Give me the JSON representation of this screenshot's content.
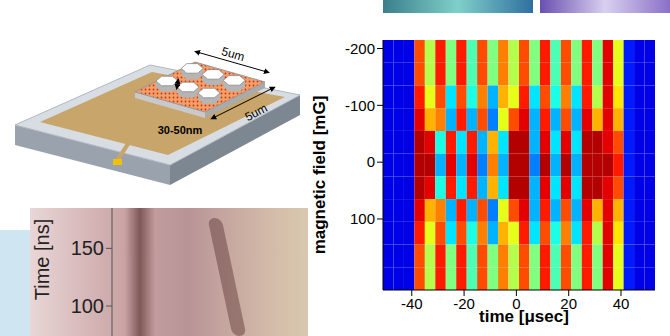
{
  "dimension_labels": {
    "top": "5um",
    "side": "5um",
    "gap": "30-50nm"
  },
  "chart_data": [
    {
      "type": "heatmap",
      "xlabel": "time [μsec]",
      "ylabel": "magnetic field [mG]",
      "xlim": [
        -51,
        53
      ],
      "ylim": [
        225,
        -215
      ],
      "xticks": [
        -40,
        -20,
        0,
        20,
        40
      ],
      "yticks": [
        -200,
        -100,
        0,
        100
      ],
      "cells": {
        "zlim": [
          0,
          1
        ],
        "x_edges": [
          -51,
          -47,
          -43,
          -39,
          -35,
          -31,
          -27,
          -23,
          -19,
          -15,
          -11,
          -7,
          -3,
          1,
          5,
          9,
          13,
          17,
          21,
          25,
          29,
          33,
          37,
          41,
          45,
          49,
          53
        ],
        "y_edges": [
          -215,
          -175,
          -135,
          -95,
          -55,
          -15,
          25,
          65,
          105,
          145,
          185,
          225
        ],
        "values": [
          [
            0.1,
            0.1,
            0.1,
            0.8,
            0.55,
            0.85,
            0.5,
            0.85,
            0.45,
            0.8,
            0.5,
            0.75,
            0.55,
            0.8,
            0.5,
            0.85,
            0.45,
            0.8,
            0.5,
            0.85,
            0.5,
            0.9,
            0.6,
            0.15,
            0.1,
            0.1
          ],
          [
            0.1,
            0.1,
            0.1,
            0.8,
            0.55,
            0.85,
            0.5,
            0.85,
            0.45,
            0.8,
            0.5,
            0.75,
            0.55,
            0.8,
            0.5,
            0.85,
            0.45,
            0.8,
            0.5,
            0.85,
            0.5,
            0.9,
            0.6,
            0.15,
            0.1,
            0.1
          ],
          [
            0.1,
            0.1,
            0.1,
            0.85,
            0.6,
            0.8,
            0.35,
            0.8,
            0.4,
            0.75,
            0.3,
            0.7,
            0.6,
            0.85,
            0.35,
            0.8,
            0.4,
            0.75,
            0.35,
            0.85,
            0.55,
            0.9,
            0.65,
            0.15,
            0.1,
            0.1
          ],
          [
            0.1,
            0.1,
            0.1,
            0.9,
            0.7,
            0.75,
            0.3,
            0.85,
            0.3,
            0.8,
            0.25,
            0.6,
            0.8,
            0.9,
            0.3,
            0.85,
            0.3,
            0.8,
            0.3,
            0.9,
            0.7,
            0.9,
            0.7,
            0.15,
            0.1,
            0.1
          ],
          [
            0.1,
            0.1,
            0.1,
            0.95,
            0.9,
            0.4,
            0.85,
            0.35,
            0.85,
            0.3,
            0.7,
            0.35,
            0.95,
            0.95,
            0.3,
            0.9,
            0.35,
            0.9,
            0.35,
            0.95,
            0.95,
            0.9,
            0.8,
            0.15,
            0.1,
            0.1
          ],
          [
            0.1,
            0.1,
            0.1,
            0.95,
            0.95,
            0.3,
            0.9,
            0.3,
            0.9,
            0.25,
            0.75,
            0.3,
            0.95,
            0.95,
            0.25,
            0.95,
            0.3,
            0.95,
            0.3,
            0.95,
            0.95,
            0.95,
            0.85,
            0.15,
            0.1,
            0.1
          ],
          [
            0.1,
            0.1,
            0.1,
            0.95,
            0.9,
            0.4,
            0.85,
            0.35,
            0.85,
            0.3,
            0.7,
            0.35,
            0.95,
            0.95,
            0.3,
            0.9,
            0.35,
            0.9,
            0.35,
            0.95,
            0.95,
            0.9,
            0.8,
            0.15,
            0.1,
            0.1
          ],
          [
            0.1,
            0.1,
            0.1,
            0.9,
            0.7,
            0.75,
            0.3,
            0.85,
            0.3,
            0.8,
            0.25,
            0.6,
            0.8,
            0.9,
            0.3,
            0.85,
            0.3,
            0.8,
            0.3,
            0.9,
            0.7,
            0.9,
            0.7,
            0.15,
            0.1,
            0.1
          ],
          [
            0.1,
            0.1,
            0.1,
            0.85,
            0.6,
            0.8,
            0.35,
            0.8,
            0.4,
            0.75,
            0.3,
            0.7,
            0.6,
            0.85,
            0.35,
            0.8,
            0.4,
            0.75,
            0.35,
            0.85,
            0.55,
            0.9,
            0.65,
            0.15,
            0.1,
            0.1
          ],
          [
            0.1,
            0.1,
            0.1,
            0.8,
            0.55,
            0.85,
            0.5,
            0.85,
            0.45,
            0.8,
            0.5,
            0.75,
            0.55,
            0.8,
            0.5,
            0.85,
            0.45,
            0.8,
            0.5,
            0.85,
            0.5,
            0.9,
            0.6,
            0.15,
            0.1,
            0.1
          ],
          [
            0.1,
            0.1,
            0.1,
            0.8,
            0.55,
            0.85,
            0.5,
            0.85,
            0.45,
            0.8,
            0.5,
            0.75,
            0.55,
            0.8,
            0.5,
            0.85,
            0.45,
            0.8,
            0.5,
            0.85,
            0.5,
            0.9,
            0.6,
            0.15,
            0.1,
            0.1
          ]
        ]
      }
    },
    {
      "type": "image",
      "ylabel": "Time [ns]",
      "ylim": [
        74,
        185
      ],
      "yticks": [
        100,
        150
      ],
      "tick_labels": "y"
    }
  ]
}
